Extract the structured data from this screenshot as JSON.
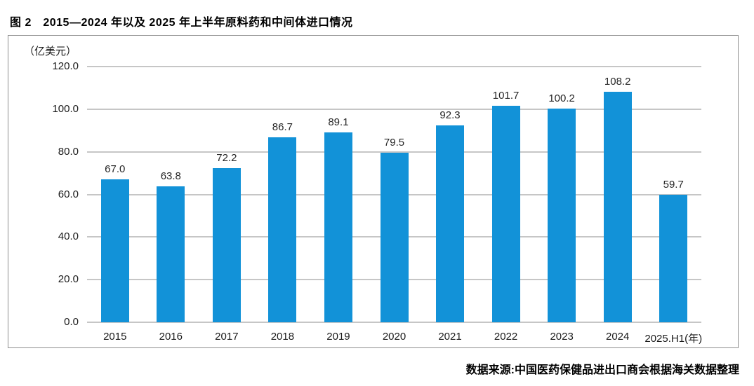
{
  "figure": {
    "title": "图 2　2015—2024 年以及 2025 年上半年原料药和中间体进口情况",
    "unit_label": "（亿美元）",
    "source": "数据来源:中国医药保健品进出口商会根据海关数据整理"
  },
  "chart_data": {
    "type": "bar",
    "title": "图 2 2015—2024 年以及 2025 年上半年原料药和中间体进口情况",
    "categories": [
      "2015",
      "2016",
      "2017",
      "2018",
      "2019",
      "2020",
      "2021",
      "2022",
      "2023",
      "2024",
      "2025.H1(年)"
    ],
    "values": [
      67.0,
      63.8,
      72.2,
      86.7,
      89.1,
      79.5,
      92.3,
      101.7,
      100.2,
      108.2,
      59.7
    ],
    "xlabel": "年",
    "ylabel": "（亿美元）",
    "ylim": [
      0,
      120
    ],
    "ytick_step": 20,
    "yticks": [
      "120.0",
      "100.0",
      "80.0",
      "60.0",
      "40.0",
      "20.0",
      "0.0"
    ],
    "bar_color": "#1292d8",
    "gridline_color": "#c6c6c6",
    "grid": true,
    "legend": "none",
    "value_labels": true,
    "source_note": "数据来源:中国医药保健品进出口商会根据海关数据整理"
  }
}
